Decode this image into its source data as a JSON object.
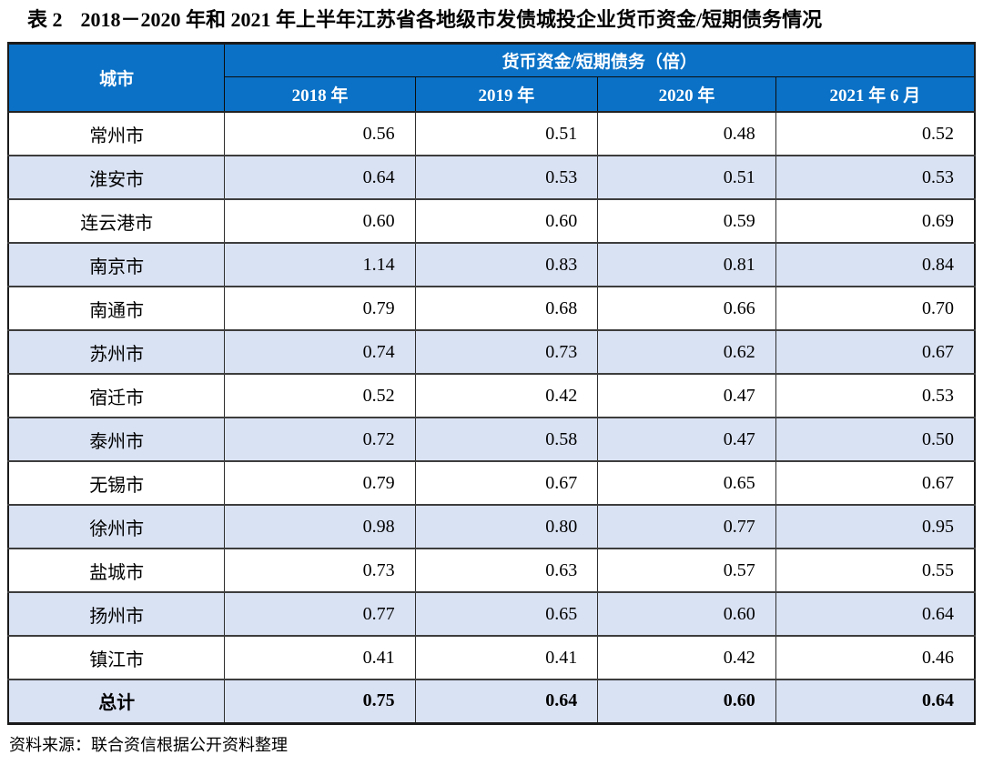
{
  "title": {
    "label": "表 2",
    "text": "2018－2020 年和 2021 年上半年江苏省各地级市发债城投企业货币资金/短期债务情况"
  },
  "table": {
    "city_header": "城市",
    "group_header": "货币资金/短期债务（倍）",
    "year_headers": [
      "2018 年",
      "2019 年",
      "2020 年",
      "2021 年 6 月"
    ],
    "rows": [
      {
        "city": "常州市",
        "values": [
          "0.56",
          "0.51",
          "0.48",
          "0.52"
        ],
        "bold": false
      },
      {
        "city": "淮安市",
        "values": [
          "0.64",
          "0.53",
          "0.51",
          "0.53"
        ],
        "bold": false
      },
      {
        "city": "连云港市",
        "values": [
          "0.60",
          "0.60",
          "0.59",
          "0.69"
        ],
        "bold": false
      },
      {
        "city": "南京市",
        "values": [
          "1.14",
          "0.83",
          "0.81",
          "0.84"
        ],
        "bold": false
      },
      {
        "city": "南通市",
        "values": [
          "0.79",
          "0.68",
          "0.66",
          "0.70"
        ],
        "bold": false
      },
      {
        "city": "苏州市",
        "values": [
          "0.74",
          "0.73",
          "0.62",
          "0.67"
        ],
        "bold": false
      },
      {
        "city": "宿迁市",
        "values": [
          "0.52",
          "0.42",
          "0.47",
          "0.53"
        ],
        "bold": false
      },
      {
        "city": "泰州市",
        "values": [
          "0.72",
          "0.58",
          "0.47",
          "0.50"
        ],
        "bold": false
      },
      {
        "city": "无锡市",
        "values": [
          "0.79",
          "0.67",
          "0.65",
          "0.67"
        ],
        "bold": false
      },
      {
        "city": "徐州市",
        "values": [
          "0.98",
          "0.80",
          "0.77",
          "0.95"
        ],
        "bold": false
      },
      {
        "city": "盐城市",
        "values": [
          "0.73",
          "0.63",
          "0.57",
          "0.55"
        ],
        "bold": false
      },
      {
        "city": "扬州市",
        "values": [
          "0.77",
          "0.65",
          "0.60",
          "0.64"
        ],
        "bold": false
      },
      {
        "city": "镇江市",
        "values": [
          "0.41",
          "0.41",
          "0.42",
          "0.46"
        ],
        "bold": false
      },
      {
        "city": "总计",
        "values": [
          "0.75",
          "0.64",
          "0.60",
          "0.64"
        ],
        "bold": true
      }
    ]
  },
  "source_note": "资料来源：联合资信根据公开资料整理",
  "colors": {
    "header_bg": "#0A71C6",
    "header_text": "#FFFFFF",
    "stripe_bg": "#D9E2F3"
  }
}
